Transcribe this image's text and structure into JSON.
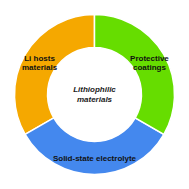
{
  "chart_data": {
    "type": "donut",
    "categories": [
      "Li hosts\nmaterials",
      "Solid-state electrolyte",
      "Protective\ncoatings"
    ],
    "values": [
      0.333,
      0.334,
      0.333
    ],
    "colors": [
      "#F5A800",
      "#4488EE",
      "#66DD00"
    ],
    "annotations": [
      "Lithiophilic",
      "materials"
    ]
  }
}
